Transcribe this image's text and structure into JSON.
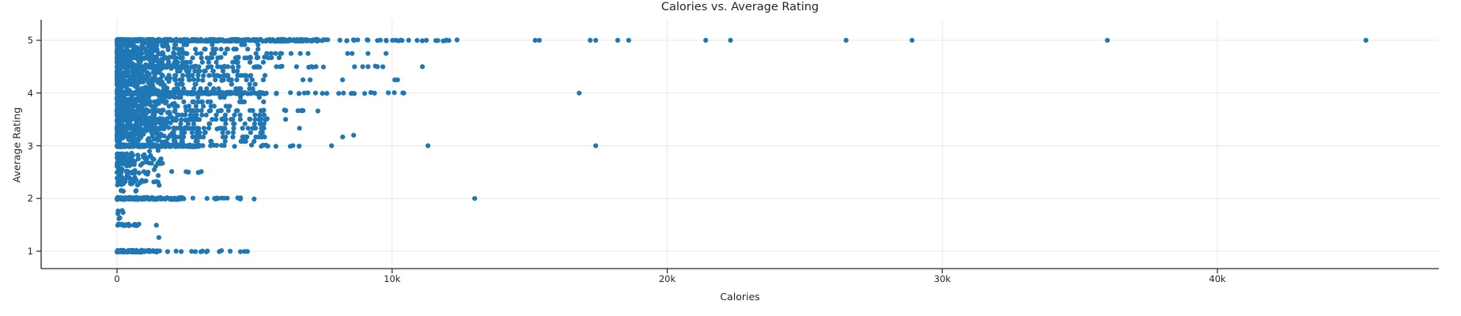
{
  "chart": {
    "title": "Calories vs. Average Rating",
    "x_label": "Calories",
    "y_label": "Average Rating"
  },
  "chart_data": {
    "type": "scatter",
    "title": "Calories vs. Average Rating",
    "xlabel": "Calories",
    "ylabel": "Average Rating",
    "xlim": [
      -2760,
      48050
    ],
    "ylim": [
      0.67,
      5.39
    ],
    "grid": true,
    "legend": "none",
    "marker_color": "#1f77b4",
    "grid_color": "#e8e8e8",
    "spine_color": "#262626",
    "text_color": "#262626",
    "marker_radius": 3.1,
    "seed": 1337,
    "x_ticks": [
      {
        "value": 0,
        "label": "0"
      },
      {
        "value": 10000,
        "label": "10k"
      },
      {
        "value": 20000,
        "label": "20k"
      },
      {
        "value": 30000,
        "label": "30k"
      },
      {
        "value": 40000,
        "label": "40k"
      }
    ],
    "y_ticks": [
      {
        "value": 1,
        "label": "1"
      },
      {
        "value": 2,
        "label": "2"
      },
      {
        "value": 3,
        "label": "3"
      },
      {
        "value": 4,
        "label": "4"
      },
      {
        "value": 5,
        "label": "5"
      }
    ],
    "bands": [
      {
        "rating": 5.0,
        "dense_to": 7600,
        "n_dense": 420,
        "scatter_to": 12600,
        "n_scatter": 30
      },
      {
        "rating": 4.8,
        "dense_to": 900,
        "n_dense": 22,
        "scatter_to": 2600,
        "n_scatter": 5
      },
      {
        "rating": 4.75,
        "dense_to": 1500,
        "n_dense": 26,
        "scatter_to": 3800,
        "n_scatter": 6
      },
      {
        "rating": 4.67,
        "dense_to": 2100,
        "n_dense": 55,
        "scatter_to": 5900,
        "n_scatter": 12
      },
      {
        "rating": 4.6,
        "dense_to": 800,
        "n_dense": 14,
        "scatter_to": 1900,
        "n_scatter": 4
      },
      {
        "rating": 4.5,
        "dense_to": 2500,
        "n_dense": 85,
        "scatter_to": 10300,
        "n_scatter": 22
      },
      {
        "rating": 4.4,
        "dense_to": 700,
        "n_dense": 12,
        "scatter_to": 1700,
        "n_scatter": 3
      },
      {
        "rating": 4.33,
        "dense_to": 1900,
        "n_dense": 42,
        "scatter_to": 5000,
        "n_scatter": 9
      },
      {
        "rating": 4.25,
        "dense_to": 1000,
        "n_dense": 18,
        "scatter_to": 4300,
        "n_scatter": 7
      },
      {
        "rating": 4.2,
        "dense_to": 700,
        "n_dense": 12,
        "scatter_to": 1500,
        "n_scatter": 3
      },
      {
        "rating": 4.0,
        "dense_to": 5500,
        "n_dense": 300,
        "scatter_to": 10600,
        "n_scatter": 20
      },
      {
        "rating": 3.86,
        "dense_to": 500,
        "n_dense": 7,
        "scatter_to": 1000,
        "n_scatter": 2
      },
      {
        "rating": 3.8,
        "dense_to": 600,
        "n_dense": 9,
        "scatter_to": 1700,
        "n_scatter": 3
      },
      {
        "rating": 3.75,
        "dense_to": 900,
        "n_dense": 14,
        "scatter_to": 2500,
        "n_scatter": 4
      },
      {
        "rating": 3.67,
        "dense_to": 1700,
        "n_dense": 38,
        "scatter_to": 7500,
        "n_scatter": 10
      },
      {
        "rating": 3.6,
        "dense_to": 600,
        "n_dense": 9,
        "scatter_to": 1400,
        "n_scatter": 2
      },
      {
        "rating": 3.5,
        "dense_to": 3000,
        "n_dense": 65,
        "scatter_to": 5500,
        "n_scatter": 10
      },
      {
        "rating": 3.4,
        "dense_to": 500,
        "n_dense": 7,
        "scatter_to": 1100,
        "n_scatter": 2
      },
      {
        "rating": 3.33,
        "dense_to": 2500,
        "n_dense": 32,
        "scatter_to": 4600,
        "n_scatter": 7
      },
      {
        "rating": 3.25,
        "dense_to": 700,
        "n_dense": 10,
        "scatter_to": 1900,
        "n_scatter": 3
      },
      {
        "rating": 3.0,
        "dense_to": 3000,
        "n_dense": 230,
        "scatter_to": 7000,
        "n_scatter": 16
      },
      {
        "rating": 2.83,
        "dense_to": 500,
        "n_dense": 8,
        "scatter_to": 1100,
        "n_scatter": 2
      },
      {
        "rating": 2.75,
        "dense_to": 600,
        "n_dense": 9,
        "scatter_to": 1600,
        "n_scatter": 3
      },
      {
        "rating": 2.67,
        "dense_to": 1000,
        "n_dense": 20,
        "scatter_to": 2100,
        "n_scatter": 4
      },
      {
        "rating": 2.5,
        "dense_to": 800,
        "n_dense": 18,
        "scatter_to": 3400,
        "n_scatter": 6
      },
      {
        "rating": 2.4,
        "dense_to": 400,
        "n_dense": 6,
        "scatter_to": 900,
        "n_scatter": 2
      },
      {
        "rating": 2.33,
        "dense_to": 600,
        "n_dense": 9,
        "scatter_to": 1700,
        "n_scatter": 3
      },
      {
        "rating": 2.15,
        "dense_to": 300,
        "n_dense": 3,
        "scatter_to": 700,
        "n_scatter": 2
      },
      {
        "rating": 2.0,
        "dense_to": 2400,
        "n_dense": 150,
        "scatter_to": 5200,
        "n_scatter": 14
      },
      {
        "rating": 1.78,
        "dense_to": 100,
        "n_dense": 1,
        "scatter_to": 300,
        "n_scatter": 1
      },
      {
        "rating": 1.72,
        "dense_to": 200,
        "n_dense": 1,
        "scatter_to": 400,
        "n_scatter": 1
      },
      {
        "rating": 1.63,
        "dense_to": 100,
        "n_dense": 1,
        "scatter_to": 200,
        "n_scatter": 1
      },
      {
        "rating": 1.5,
        "dense_to": 800,
        "n_dense": 26,
        "scatter_to": 1750,
        "n_scatter": 1
      },
      {
        "rating": 1.27,
        "dense_to": 1800,
        "n_dense": 1,
        "scatter_to": 1850,
        "n_scatter": 0
      },
      {
        "rating": 1.0,
        "dense_to": 1500,
        "n_dense": 90,
        "scatter_to": 5400,
        "n_scatter": 16
      }
    ],
    "clouds": [
      {
        "n": 700,
        "cal_min": 0,
        "cal_max": 2100,
        "pow": 2.0,
        "r_min": 3.05,
        "r_max": 4.97,
        "snap": 0
      },
      {
        "n": 330,
        "cal_min": 2100,
        "cal_max": 5400,
        "pow": 1.3,
        "r_min": 3.05,
        "r_max": 4.95,
        "snap": 12
      },
      {
        "n": 80,
        "cal_min": 0,
        "cal_max": 1600,
        "pow": 1.5,
        "r_min": 2.25,
        "r_max": 2.95,
        "snap": 0
      },
      {
        "n": 26,
        "cal_min": 5400,
        "cal_max": 10300,
        "pow": 1.1,
        "r_min": 4.05,
        "r_max": 4.95,
        "snap": 4
      },
      {
        "n": 8,
        "cal_min": 4200,
        "cal_max": 8700,
        "pow": 1.0,
        "r_min": 3.1,
        "r_max": 3.85,
        "snap": 6
      }
    ],
    "notable_points": [
      {
        "calories": 15200,
        "rating": 5
      },
      {
        "calories": 15350,
        "rating": 5
      },
      {
        "calories": 17200,
        "rating": 5
      },
      {
        "calories": 17400,
        "rating": 5
      },
      {
        "calories": 18200,
        "rating": 5
      },
      {
        "calories": 18600,
        "rating": 5
      },
      {
        "calories": 21400,
        "rating": 5
      },
      {
        "calories": 22300,
        "rating": 5
      },
      {
        "calories": 26500,
        "rating": 5
      },
      {
        "calories": 28900,
        "rating": 5
      },
      {
        "calories": 36000,
        "rating": 5
      },
      {
        "calories": 45400,
        "rating": 5
      },
      {
        "calories": 11100,
        "rating": 4.5
      },
      {
        "calories": 16800,
        "rating": 4
      },
      {
        "calories": 8600,
        "rating": 3.2
      },
      {
        "calories": 7800,
        "rating": 3
      },
      {
        "calories": 11300,
        "rating": 3
      },
      {
        "calories": 17400,
        "rating": 3
      },
      {
        "calories": 13000,
        "rating": 2
      }
    ]
  }
}
